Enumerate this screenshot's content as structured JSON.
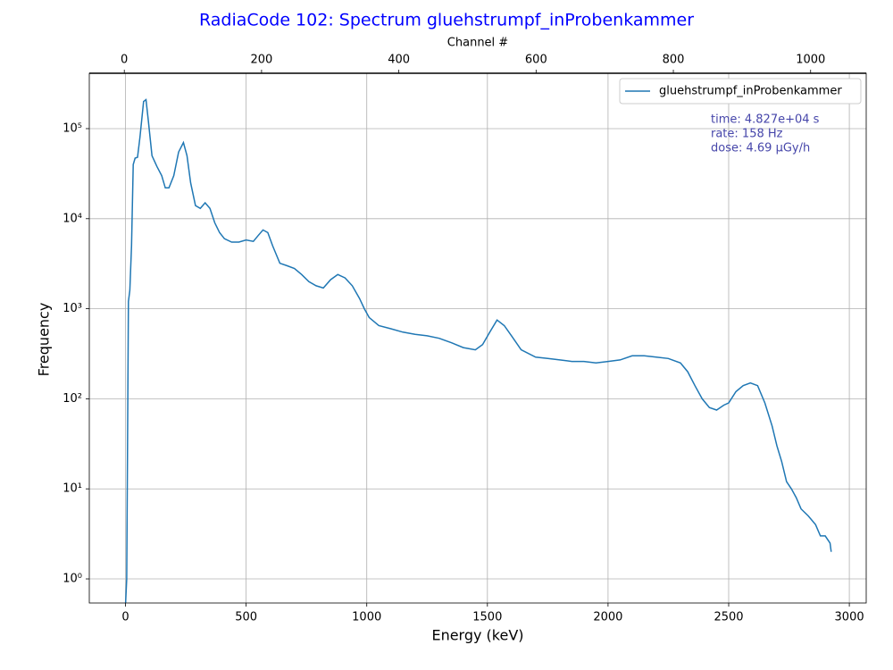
{
  "chart_data": {
    "type": "line",
    "title": "RadiaCode 102: Spectrum gluehstrumpf_inProbenkammer",
    "xlabel": "Energy (keV)",
    "ylabel": "Frequency",
    "x2label": "Channel #",
    "x": [
      0,
      5,
      12,
      18,
      25,
      32,
      40,
      50,
      60,
      75,
      85,
      95,
      110,
      130,
      150,
      165,
      180,
      200,
      220,
      240,
      255,
      270,
      290,
      310,
      330,
      350,
      370,
      390,
      410,
      440,
      470,
      500,
      530,
      550,
      570,
      590,
      610,
      640,
      670,
      700,
      730,
      760,
      790,
      820,
      850,
      880,
      910,
      940,
      970,
      990,
      1010,
      1050,
      1100,
      1150,
      1200,
      1250,
      1300,
      1350,
      1400,
      1450,
      1480,
      1510,
      1540,
      1570,
      1600,
      1640,
      1700,
      1750,
      1800,
      1850,
      1900,
      1950,
      2000,
      2050,
      2100,
      2150,
      2200,
      2250,
      2300,
      2330,
      2360,
      2390,
      2420,
      2450,
      2480,
      2500,
      2530,
      2560,
      2590,
      2620,
      2650,
      2680,
      2700,
      2720,
      2740,
      2760,
      2780,
      2800,
      2830,
      2860,
      2880,
      2900,
      2920,
      2925
    ],
    "series": [
      {
        "name": "gluehstrumpf_inProbenkammer",
        "color": "#1f77b4",
        "values": [
          0.5,
          1,
          1200,
          1600,
          5000,
          40000,
          47000,
          48000,
          80000,
          200000,
          210000,
          120000,
          50000,
          38000,
          30000,
          22000,
          22000,
          30000,
          55000,
          70000,
          50000,
          25000,
          14000,
          13000,
          15000,
          13000,
          9000,
          7000,
          6000,
          5500,
          5500,
          5800,
          5600,
          6500,
          7500,
          7000,
          5000,
          3200,
          3000,
          2800,
          2400,
          2000,
          1800,
          1700,
          2100,
          2400,
          2200,
          1800,
          1300,
          1000,
          800,
          650,
          600,
          550,
          520,
          500,
          470,
          420,
          370,
          350,
          400,
          550,
          750,
          650,
          500,
          350,
          290,
          280,
          270,
          260,
          260,
          250,
          260,
          270,
          300,
          300,
          290,
          280,
          250,
          200,
          140,
          100,
          80,
          75,
          85,
          90,
          120,
          140,
          150,
          140,
          90,
          50,
          30,
          20,
          12,
          10,
          8,
          6,
          5,
          4,
          3,
          3,
          2.5,
          2
        ]
      }
    ],
    "xlim": [
      -150,
      3070
    ],
    "xticks": [
      0,
      500,
      1000,
      1500,
      2000,
      2500,
      3000
    ],
    "x2lim": [
      -51,
      1081
    ],
    "x2ticks": [
      0,
      200,
      400,
      600,
      800,
      1000
    ],
    "ylim": [
      0.54,
      412000
    ],
    "log_y": true,
    "yticks": [
      {
        "value": 1,
        "label": "10⁰"
      },
      {
        "value": 10,
        "label": "10¹"
      },
      {
        "value": 100,
        "label": "10²"
      },
      {
        "value": 1000,
        "label": "10³"
      },
      {
        "value": 10000,
        "label": "10⁴"
      },
      {
        "value": 100000,
        "label": "10⁵"
      }
    ],
    "grid": true,
    "legend": "upper right",
    "annotations": [
      "time: 4.827e+04 s",
      "rate: 158 Hz",
      "dose: 4.69 µGy/h"
    ]
  }
}
